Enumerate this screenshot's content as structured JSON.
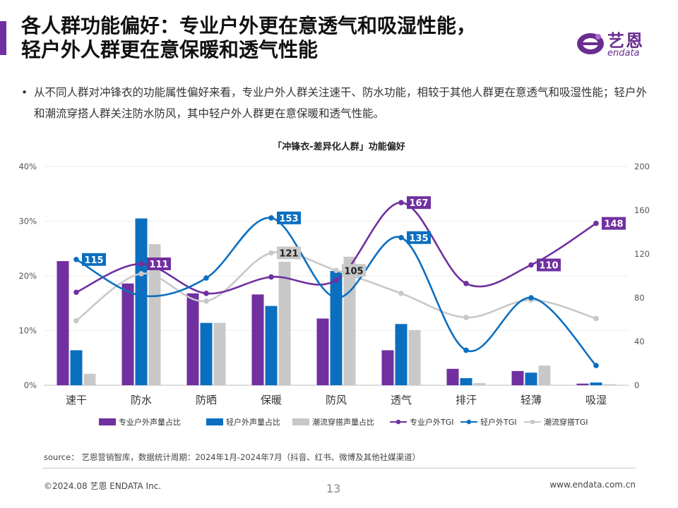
{
  "header": {
    "title_line1": "各人群功能偏好：专业户外更在意透气和吸湿性能，",
    "title_line2": "轻户外人群更在意保暖和透气性能",
    "logo_cn": "艺恩",
    "logo_en": "endata"
  },
  "bullet": {
    "dot": "•",
    "text": "从不同人群对冲锋衣的功能属性偏好来看，专业户外人群关注速干、防水功能，相较于其他人群更在意透气和吸湿性能；轻户外和潮流穿搭人群关注防水防风，其中轻户外人群更在意保暖和透气性能。"
  },
  "chart_data": {
    "type": "bar",
    "title": "「冲锋衣-差异化人群」功能偏好",
    "categories": [
      "速干",
      "防水",
      "防晒",
      "保暖",
      "防风",
      "透气",
      "排汗",
      "轻薄",
      "吸湿"
    ],
    "left_axis": {
      "ylim": [
        0,
        40
      ],
      "ticks": [
        "0%",
        "10%",
        "20%",
        "30%",
        "40%"
      ]
    },
    "right_axis": {
      "ylim": [
        0,
        200
      ],
      "ticks": [
        "0",
        "40",
        "80",
        "120",
        "160",
        "200"
      ]
    },
    "bar_series": [
      {
        "name": "专业户外声量占比",
        "color": "#7030a0",
        "values": [
          22.7,
          18.6,
          16.8,
          16.6,
          12.2,
          6.4,
          3.0,
          2.6,
          0.3
        ]
      },
      {
        "name": "轻户外声量占比",
        "color": "#0b6fc0",
        "values": [
          6.4,
          30.5,
          11.4,
          14.5,
          20.9,
          11.2,
          1.3,
          2.3,
          0.5
        ]
      },
      {
        "name": "潮流穿搭声量占比",
        "color": "#c8c8c8",
        "values": [
          2.1,
          25.8,
          11.4,
          22.6,
          23.5,
          10.1,
          0.4,
          3.6,
          0.2
        ]
      }
    ],
    "line_series": [
      {
        "name": "专业户外TGI",
        "color": "#7030a0",
        "values": [
          85,
          111,
          84,
          99,
          96,
          167,
          93,
          110,
          148
        ]
      },
      {
        "name": "轻户外TGI",
        "color": "#0b6fc0",
        "values": [
          115,
          82,
          98,
          153,
          80,
          135,
          32,
          80,
          18
        ]
      },
      {
        "name": "潮流穿搭TGI",
        "color": "#c8c8c8",
        "values": [
          59,
          102,
          77,
          121,
          105,
          84,
          62,
          78,
          61
        ]
      }
    ],
    "line_labels": [
      {
        "series": 0,
        "index": 1,
        "text": "111"
      },
      {
        "series": 0,
        "index": 5,
        "text": "167"
      },
      {
        "series": 0,
        "index": 7,
        "text": "110"
      },
      {
        "series": 0,
        "index": 8,
        "text": "148"
      },
      {
        "series": 1,
        "index": 0,
        "text": "115"
      },
      {
        "series": 1,
        "index": 3,
        "text": "153"
      },
      {
        "series": 1,
        "index": 5,
        "text": "135"
      },
      {
        "series": 2,
        "index": 3,
        "text": "121"
      },
      {
        "series": 2,
        "index": 4,
        "text": "105"
      }
    ]
  },
  "source": "source： 艺恩营销智库，数据统计周期：2024年1月-2024年7月（抖音、红书、微博及其他社媒渠道）",
  "footer": {
    "copyright": "©2024.08  艺恩 ENDATA Inc.",
    "page": "13",
    "url": "www.endata.com.cn"
  }
}
